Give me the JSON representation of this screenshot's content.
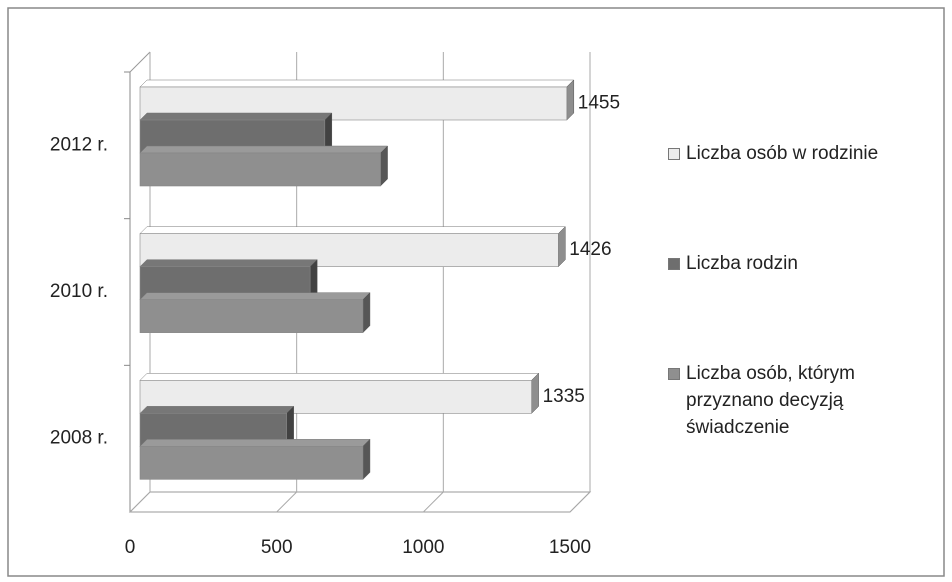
{
  "chart_data": {
    "type": "bar3d_horizontal",
    "categories": [
      "2008 r.",
      "2010 r.",
      "2012 r."
    ],
    "series": [
      {
        "name": "Liczba osób w rodzinie",
        "color": "#ececec",
        "values": [
          1335,
          1426,
          1455
        ],
        "show_labels": true
      },
      {
        "name": "Liczba rodzin",
        "color": "#6e6e6e",
        "values": [
          500,
          580,
          630
        ]
      },
      {
        "name": "Liczba osób, którym przyznano decyzją świadczenie",
        "color": "#8f8f8f",
        "values": [
          760,
          760,
          820
        ]
      }
    ],
    "xlim": [
      0,
      1500
    ],
    "xticks": [
      0,
      500,
      1000,
      1500
    ],
    "grid": true,
    "legend": "right"
  }
}
